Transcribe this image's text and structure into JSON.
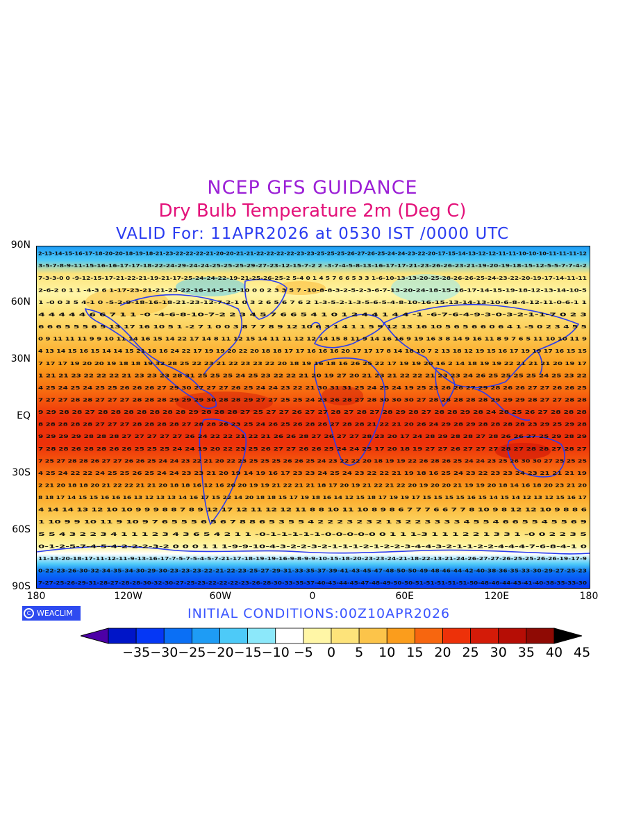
{
  "title": "NCEP GFS GUIDANCE",
  "subtitle": "Dry Bulb Temperature 2m (Deg C)",
  "valid": "VALID For: 11APR2026 at 0530 IST /0000 UTC",
  "initial_conditions": "INITIAL CONDITIONS:00Z10APR2026",
  "logo_text": "WEACLIM",
  "lat_labels": [
    "90N",
    "60N",
    "30N",
    "EQ",
    "30S",
    "60S",
    "90S"
  ],
  "lon_labels": [
    "180",
    "120W",
    "60W",
    "0",
    "60E",
    "120E",
    "180"
  ],
  "colorbar": {
    "labels": [
      "-35",
      "-30",
      "-25",
      "-20",
      "-15",
      "-10",
      "-5",
      "0",
      "5",
      "10",
      "15",
      "20",
      "25",
      "30",
      "35",
      "40",
      "45"
    ],
    "colors": [
      "#4d00a6",
      "#0015c8",
      "#0537f5",
      "#0a6ff5",
      "#1e9cf5",
      "#4dcaf8",
      "#8ce8fa",
      "#ffffff",
      "#fff6a6",
      "#fde37a",
      "#fcc44a",
      "#fb9d1c",
      "#f7660f",
      "#ed3109",
      "#d41b08",
      "#b60d05",
      "#8f0a04",
      "#000000"
    ]
  },
  "row_samples": [
    "2-13-14-15-16-17-18-20-20-18-19-18-21-23-22-22-22-21-20-20-21-21-22-22-22-22-23-23-25-25-25-26-27-26-25-24-24-23-22-20-17-15-14-13-12-12-11-11-10-10-10-11-11-11-12",
    "3-5-7-8-9-11-15-16-16-17-17-18-22-24-29-24-24-25-25-25-29-27-23-12-15-7-2 2 -3-7-4-5-8-13-16-17-17-21-23-26-26-23-21-19-20-19-18-15-12-5-5-7-7-4-2",
    "7-3-3-0 0 -9-12-15-17-21-22-21-19-21-17-25-24-24-22-19-21-25-26-25-2 5-4 0 1 4 5 7 6 6 5 3 3 1-6-10-13-13-20-25-28-26-26-25-24-23-22-20-19-17-14-11-11",
    "2-6-2 0 1 1 -4-3 6 1-17-23-21-21-23-22-16-14-5-15-10 0 0 2 3 3 5 7 -10-8-8-3-2-5-2-3-6-7-13-20-24-18-15-16-17-14-15-19-18-12-13-14-10-5",
    "1 -0 0 3 5 4-1 0 -5-2-9-18-16-18-21-23-12-7-2-1 0 3 2 6 5 6 7 6 2 1-3-5-2-1-3-5-6-5-4-8-10-16-15-13-14-13-10-6-8-4-12-11-0-6-1 1",
    "4 4 4 4 4 6 6 7 1 1 -0 -4-6-8-10-7-2 2 3 4 5 7 6 6 5 4 1 0 1 2 4 4 1 4 4 -1 -6-7-6-4-9-3-0-3-2-1-1-7 0 2 3",
    "6 6 6 5 5 5 6 5 13 17 16 10 5 1 -2 7 1 0 0 3 8 7 7 8 9 12 10 6 3 1 4 1 1 5 9 12 13 16 10 5 6 5 6 6 0 6 4 1 -5 0 2 3 4 5 5",
    "0 9 11 11 11 9 9 10 11 14 16 15 14 22 17 14 8 11 12 15 14 11 11 12 12 14 15 8 11 9 14 16 16 9 19 16 3 8 14 9 16 11 8 9 7 6 5 11 10 10 11 9",
    "4 13 14 15 16 15 14 14 15 21 18 16 24 22 17 19 19 20 22 20 18 18 17 17 16 16 16 20 17 17 17 8 14 18 10 7 2 13 18 12 19 15 16 17 19 19 17 16 15 15",
    "7 17 17 19 20 20 19 18 18 19 32 28 25 22 23 21 22 23 23 22 20 18 19 16 18 16 26 25 22 17 19 19 20 16 2 14 18 19 19 22 21 21 21 20 19 17",
    "1 21 21 23 22 22 22 21 23 23 23 28 31 25 25 25 24 25 23 22 22 21 20 19 27 20 21 23 21 22 22 21 23 23 24 26 25 25 25 25 24 25 23 22",
    "4 25 24 25 24 25 25 26 26 26 27 29 30 27 27 27 26 25 24 24 23 22 21 30 31 31 25 24 25 24 19 25 23 26 26 27 29 28 26 26 27 27 26 26 25",
    "7 27 27 28 28 27 27 27 28 28 28 29 29 29 30 28 28 29 27 27 25 25 24 23 26 28 27 28 30 30 30 27 28 28 28 28 28 29 29 29 28 27 27 28 28",
    "9 29 28 28 27 28 28 28 28 28 28 28 29 28 28 28 27 25 27 27 26 27 27 28 27 28 27 28 29 28 27 28 28 29 28 24 28 25 26 27 28 28 28",
    "8 28 28 28 28 27 27 27 28 28 28 28 27 28 28 26 23 25 24 26 25 26 28 26 27 28 28 21 22 21 20 26 24 29 28 29 28 28 28 28 23 29 25 29 28",
    "9 29 29 29 28 28 28 27 27 27 27 27 26 24 22 22 21 22 21 26 26 28 27 26 27 27 28 23 20 17 24 28 29 28 28 27 28 26 26 27 25 29 28 29",
    "7 28 28 26 28 28 26 26 25 25 25 24 24 19 20 22 23 25 26 27 27 26 26 25 24 24 25 17 20 18 19 27 27 26 27 27 27 28 27 28 28 27 28 27",
    "7 25 27 28 28 26 27 27 26 26 25 24 24 23 22 21 20 22 23 25 25 25 26 26 25 24 23 22 22 20 18 19 19 22 26 28 26 25 24 24 23 25 26 30 30 27 25 25 25",
    "4 25 24 22 22 24 25 25 26 25 24 24 23 23 21 20 19 14 19 16 17 23 23 24 25 24 23 22 22 21 19 18 16 25 24 23 22 23 23 24 23 21 21 21 19",
    "2 21 20 18 18 20 21 22 22 21 21 20 18 18 16 12 16 20 20 19 19 21 22 21 21 18 17 20 19 21 22 21 22 20 19 20 20 21 19 19 20 18 14 16 18 20 23 21 20",
    "8 18 17 14 15 15 16 16 16 13 12 13 13 14 16 17 15 22 14 20 18 18 15 17 19 18 16 14 12 15 18 17 19 19 17 15 15 15 15 16 15 14 15 14 12 13 12 15 16 17",
    "4 14 14 13 12 10 10 9 9 9 8 8 7 8 9 12 17 12 11 12 12 11 8 8 10 11 10 8 9 8 6 7 7 7 6 6 7 7 8 10 9 8 12 12 10 9 8 8 6",
    "1 10 9 9 10 11 9 10 9 7 6 5 5 5 6 5 6 7 8 8 6 5 3 5 5 4 2 2 2 3 2 3 2 1 3 2 2 3 3 3 3 4 5 5 4 6 6 5 5 4 5 5 6 9",
    "5 5 4 3 2 2 3 4 1 1 1 2 3 4 3 6 5 4 2 1 1 -0-1-1-1-1-1-0-0-0-0-0 0 1 1 1-3 1 1 1 2 2 1 3 3 1 -0 0 2 2 3 5",
    "0-1-2-5-7-4-5-4-2-2-2-3-2 0 0 0 1 1 1-9-9-10-4-3-2-2-3-2-1-1-1-2-1-2-2-3-4-4-3-2-1-1-2-2-4-4-4-7-6-8-4-1 0",
    "11-13-20-18-17-11-12-11-9-13-16-17-7-5-7-5-4-5-7-21-17-18-19-19-16-9-8-9-9-10-15-18-20-23-23-24-21-18-22-13-21-24-26-27-27-26-25-25-26-26-19-17-9",
    "0-22-23-26-30-32-34-35-34-30-29-30-23-23-23-22-21-22-23-25-27-29-31-33-35-37-39-41-43-45-47-48-50-50-49-48-46-44-42-40-38-36-35-33-30-29-27-25-23",
    "7-27-25-26-29-31-28-27-28-28-30-32-30-27-25-23-22-22-22-23-26-28-30-33-35-37-40-43-44-45-47-48-49-50-50-51-51-51-51-51-50-48-46-44-43-41-40-38-35-33-30"
  ]
}
